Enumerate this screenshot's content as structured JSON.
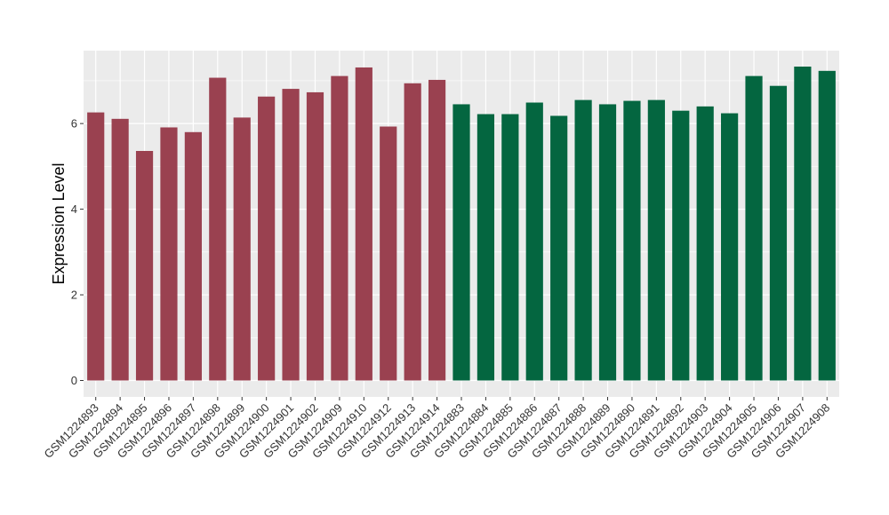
{
  "chart_data": {
    "type": "bar",
    "title": "",
    "xlabel": "",
    "ylabel": "Expression Level",
    "ylim": [
      0,
      7.6
    ],
    "yticks": [
      0,
      2,
      4,
      6
    ],
    "grid": true,
    "colors": {
      "group1": "#9a4150",
      "group2": "#046640",
      "panel": "#ebebeb",
      "grid": "#ffffff"
    },
    "categories": [
      "GSM1224893",
      "GSM1224894",
      "GSM1224895",
      "GSM1224896",
      "GSM1224897",
      "GSM1224898",
      "GSM1224899",
      "GSM1224900",
      "GSM1224901",
      "GSM1224902",
      "GSM1224909",
      "GSM1224910",
      "GSM1224912",
      "GSM1224913",
      "GSM1224914",
      "GSM1224883",
      "GSM1224884",
      "GSM1224885",
      "GSM1224886",
      "GSM1224887",
      "GSM1224888",
      "GSM1224889",
      "GSM1224890",
      "GSM1224891",
      "GSM1224892",
      "GSM1224903",
      "GSM1224904",
      "GSM1224905",
      "GSM1224906",
      "GSM1224907",
      "GSM1224908"
    ],
    "values": [
      6.26,
      6.11,
      5.36,
      5.91,
      5.8,
      7.07,
      6.14,
      6.63,
      6.81,
      6.73,
      7.11,
      7.31,
      5.93,
      6.94,
      7.02,
      6.45,
      6.22,
      6.22,
      6.49,
      6.18,
      6.55,
      6.45,
      6.53,
      6.55,
      6.3,
      6.4,
      6.24,
      7.11,
      6.88,
      7.33,
      7.23
    ],
    "groups": [
      1,
      1,
      1,
      1,
      1,
      1,
      1,
      1,
      1,
      1,
      1,
      1,
      1,
      1,
      1,
      2,
      2,
      2,
      2,
      2,
      2,
      2,
      2,
      2,
      2,
      2,
      2,
      2,
      2,
      2,
      2
    ]
  }
}
